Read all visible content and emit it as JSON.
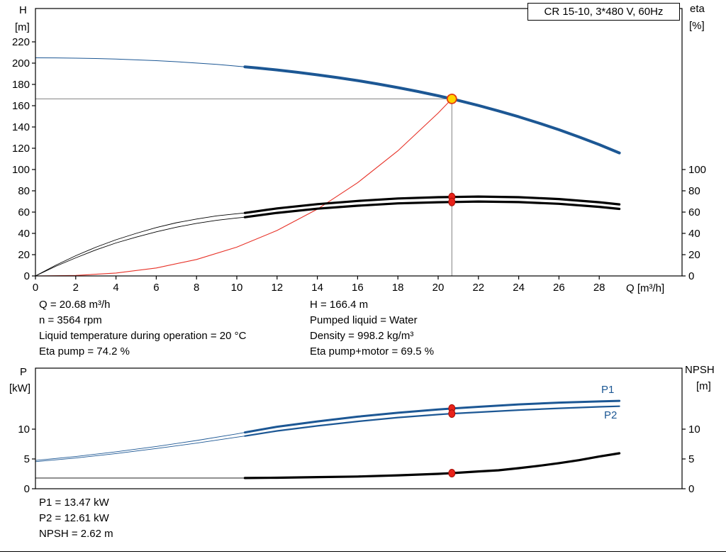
{
  "header": {
    "model_box": "CR 15-10, 3*480 V, 60Hz"
  },
  "palette": {
    "blue": "#1c5794",
    "red": "#e73127",
    "black": "#000000",
    "gray": "#808080",
    "yellow": "#ffd400",
    "marker_red": "#e8221a",
    "marker_edge": "#a51008",
    "op_ring": "#e23d0e"
  },
  "chart_data": [
    {
      "id": "qh-eta-chart",
      "type": "line",
      "x_axis": {
        "label": "Q [m³/h]",
        "min": 0,
        "max": 32.1,
        "ticks": [
          0,
          2,
          4,
          6,
          8,
          10,
          12,
          14,
          16,
          18,
          20,
          22,
          24,
          26,
          28
        ],
        "show_labels": true
      },
      "y_left": {
        "label": "H",
        "unit": "[m]",
        "min": 0,
        "max": 251,
        "ticks": [
          0,
          20,
          40,
          60,
          80,
          100,
          120,
          140,
          160,
          180,
          200,
          220
        ]
      },
      "y_right": {
        "label": "eta",
        "unit": "[%]",
        "min": 0,
        "max": 100,
        "ticks": [
          0,
          20,
          40,
          60,
          80,
          100
        ]
      },
      "series": [
        {
          "name": "system-curve",
          "axis": "left",
          "color": "red",
          "width": 1.1,
          "points": [
            [
              0,
              0
            ],
            [
              2,
              0.5
            ],
            [
              4,
              2.7
            ],
            [
              6,
              7.5
            ],
            [
              8,
              15.5
            ],
            [
              10,
              27.1
            ],
            [
              12,
              42.7
            ],
            [
              14,
              62.7
            ],
            [
              16,
              87.6
            ],
            [
              18,
              117.6
            ],
            [
              20,
              153.1
            ],
            [
              20.68,
              166.4
            ]
          ]
        },
        {
          "name": "head-curve",
          "axis": "left",
          "color": "blue",
          "width": 4,
          "width_thin": 1,
          "thin_until": 10.4,
          "points": [
            [
              0,
              205
            ],
            [
              1,
              204.9
            ],
            [
              2,
              204.7
            ],
            [
              3,
              204.3
            ],
            [
              4,
              203.8
            ],
            [
              5,
              203.1
            ],
            [
              6,
              202.3
            ],
            [
              7,
              201.3
            ],
            [
              8,
              200.1
            ],
            [
              9,
              198.8
            ],
            [
              10,
              197.2
            ],
            [
              10.4,
              196.5
            ],
            [
              11,
              195.5
            ],
            [
              12,
              193.6
            ],
            [
              13,
              191.4
            ],
            [
              14,
              189.0
            ],
            [
              15,
              186.4
            ],
            [
              16,
              183.6
            ],
            [
              17,
              180.4
            ],
            [
              18,
              177.0
            ],
            [
              19,
              173.3
            ],
            [
              20,
              169.3
            ],
            [
              20.68,
              166.4
            ],
            [
              21,
              164.9
            ],
            [
              22,
              160.2
            ],
            [
              23,
              155.1
            ],
            [
              24,
              149.6
            ],
            [
              25,
              143.7
            ],
            [
              26,
              137.4
            ],
            [
              27,
              130.6
            ],
            [
              28,
              123.4
            ],
            [
              29,
              115.6
            ]
          ]
        },
        {
          "name": "eta-pump-curve",
          "axis": "right",
          "color": "black",
          "width": 3.2,
          "width_thin": 0.9,
          "thin_until": 10.4,
          "points": [
            [
              0,
              0
            ],
            [
              1,
              10
            ],
            [
              2,
              19
            ],
            [
              3,
              27
            ],
            [
              4,
              34
            ],
            [
              5,
              40
            ],
            [
              6,
              45.5
            ],
            [
              7,
              50
            ],
            [
              8,
              53.5
            ],
            [
              9,
              56.5
            ],
            [
              10,
              58.5
            ],
            [
              10.4,
              59.2
            ],
            [
              12,
              63.5
            ],
            [
              14,
              67.5
            ],
            [
              16,
              70.5
            ],
            [
              18,
              72.8
            ],
            [
              20,
              74.0
            ],
            [
              20.68,
              74.2
            ],
            [
              22,
              74.6
            ],
            [
              24,
              74.0
            ],
            [
              26,
              72.3
            ],
            [
              28,
              69.3
            ],
            [
              29,
              67.3
            ]
          ]
        },
        {
          "name": "eta-pump-motor-curve",
          "axis": "right",
          "color": "black",
          "width": 3.2,
          "width_thin": 0.9,
          "thin_until": 10.4,
          "points": [
            [
              0,
              0
            ],
            [
              1,
              9
            ],
            [
              2,
              17
            ],
            [
              3,
              24.5
            ],
            [
              4,
              31
            ],
            [
              5,
              36.5
            ],
            [
              6,
              41.5
            ],
            [
              7,
              45.8
            ],
            [
              8,
              49.4
            ],
            [
              9,
              52.3
            ],
            [
              10,
              54.5
            ],
            [
              10.4,
              55.2
            ],
            [
              12,
              59.3
            ],
            [
              14,
              63.2
            ],
            [
              16,
              66.0
            ],
            [
              18,
              68.2
            ],
            [
              20,
              69.3
            ],
            [
              20.68,
              69.5
            ],
            [
              22,
              69.9
            ],
            [
              24,
              69.4
            ],
            [
              26,
              67.8
            ],
            [
              28,
              64.9
            ],
            [
              29,
              63.0
            ]
          ]
        }
      ],
      "crosshair": {
        "q": 20.68,
        "v": 166.4
      },
      "operating_point": {
        "q": 20.68,
        "v": 166.4
      },
      "markers": [
        {
          "q": 20.68,
          "v": 74.2
        },
        {
          "q": 20.68,
          "v": 69.5
        }
      ]
    },
    {
      "id": "power-npsh-chart",
      "type": "line",
      "x_axis": {
        "label": "",
        "min": 0,
        "max": 32.1,
        "ticks": [],
        "show_labels": false
      },
      "y_left": {
        "label": "P",
        "unit": "[kW]",
        "min": 0,
        "max": 20.2,
        "ticks": [
          0,
          5,
          10
        ]
      },
      "y_right": {
        "label": "NPSH",
        "unit": "[m]",
        "min": 0,
        "max": 20.2,
        "ticks": [
          0,
          5,
          10
        ]
      },
      "series": [
        {
          "name": "p1-curve",
          "axis": "left",
          "color": "blue",
          "width": 3,
          "width_thin": 0.9,
          "thin_until": 10.4,
          "points": [
            [
              0,
              4.75
            ],
            [
              2,
              5.4
            ],
            [
              4,
              6.2
            ],
            [
              6,
              7.1
            ],
            [
              8,
              8.1
            ],
            [
              10,
              9.2
            ],
            [
              10.4,
              9.45
            ],
            [
              12,
              10.4
            ],
            [
              14,
              11.3
            ],
            [
              16,
              12.1
            ],
            [
              18,
              12.75
            ],
            [
              20,
              13.3
            ],
            [
              20.68,
              13.47
            ],
            [
              22,
              13.75
            ],
            [
              24,
              14.15
            ],
            [
              26,
              14.45
            ],
            [
              28,
              14.65
            ],
            [
              29,
              14.75
            ]
          ]
        },
        {
          "name": "p2-curve",
          "axis": "left",
          "color": "blue",
          "width": 2.2,
          "width_thin": 0.9,
          "thin_until": 10.4,
          "points": [
            [
              0,
              4.55
            ],
            [
              2,
              5.15
            ],
            [
              4,
              5.9
            ],
            [
              6,
              6.75
            ],
            [
              8,
              7.65
            ],
            [
              10,
              8.65
            ],
            [
              10.4,
              8.85
            ],
            [
              12,
              9.7
            ],
            [
              14,
              10.55
            ],
            [
              16,
              11.3
            ],
            [
              18,
              11.95
            ],
            [
              20,
              12.45
            ],
            [
              20.68,
              12.61
            ],
            [
              22,
              12.85
            ],
            [
              24,
              13.2
            ],
            [
              26,
              13.5
            ],
            [
              28,
              13.75
            ],
            [
              29,
              13.85
            ]
          ]
        },
        {
          "name": "npsh-curve",
          "axis": "right",
          "color": "black",
          "width": 3.2,
          "width_thin": 0.9,
          "thin_until": 10.4,
          "points": [
            [
              0,
              1.8
            ],
            [
              4,
              1.8
            ],
            [
              8,
              1.8
            ],
            [
              10,
              1.8
            ],
            [
              10.4,
              1.8
            ],
            [
              12,
              1.85
            ],
            [
              14,
              1.95
            ],
            [
              16,
              2.05
            ],
            [
              18,
              2.25
            ],
            [
              20,
              2.5
            ],
            [
              20.68,
              2.62
            ],
            [
              22,
              2.9
            ],
            [
              23,
              3.1
            ],
            [
              24,
              3.45
            ],
            [
              25,
              3.85
            ],
            [
              26,
              4.3
            ],
            [
              27,
              4.8
            ],
            [
              28,
              5.4
            ],
            [
              29,
              5.95
            ]
          ]
        }
      ],
      "markers": [
        {
          "q": 20.68,
          "v": 13.47
        },
        {
          "q": 20.68,
          "v": 12.61
        },
        {
          "q": 20.68,
          "v": 2.62
        }
      ],
      "curve_labels": {
        "p1": "P1",
        "p2": "P2"
      }
    }
  ],
  "results_top": {
    "left": [
      "Q = 20.68 m³/h",
      "n = 3564 rpm",
      "Liquid temperature during operation = 20 °C",
      "Eta pump = 74.2 %"
    ],
    "right": [
      "H = 166.4 m",
      "Pumped liquid = Water",
      "Density = 998.2 kg/m³",
      "Eta pump+motor = 69.5 %"
    ]
  },
  "results_bottom": [
    "P1 = 13.47 kW",
    "P2 = 12.61 kW",
    "NPSH = 2.62 m"
  ]
}
